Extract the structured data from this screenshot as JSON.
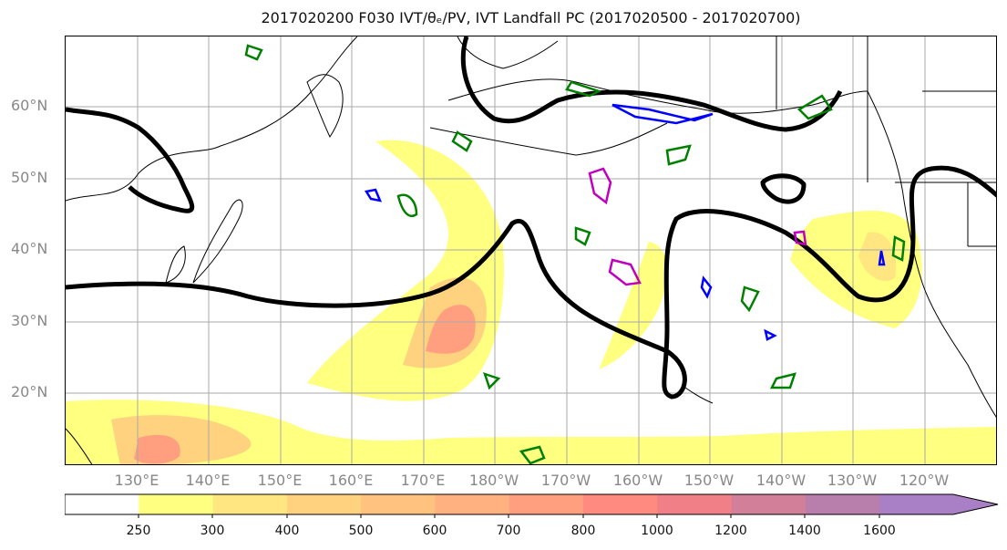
{
  "title_text": "2017020200 F030 IVT/θₑ/PV, IVT Landfall PC (2017020500 - 2017020700)",
  "lat_labels": [
    "60°N",
    "50°N",
    "40°N",
    "30°N",
    "20°N"
  ],
  "lon_labels": [
    "130°E",
    "140°E",
    "150°E",
    "160°E",
    "170°E",
    "180°W",
    "170°W",
    "160°W",
    "150°W",
    "140°W",
    "130°W",
    "120°W"
  ],
  "colorbar": {
    "ticks": [
      "250",
      "300",
      "400",
      "500",
      "600",
      "700",
      "800",
      "1000",
      "1200",
      "1400",
      "1600"
    ],
    "colors": [
      "#ffffff",
      "#ffff80",
      "#ffe680",
      "#ffd27f",
      "#ffc27f",
      "#ffb27f",
      "#ff9f7f",
      "#ff8a7f",
      "#f07f88",
      "#d27f99",
      "#b87fad",
      "#a97fc6"
    ]
  },
  "colors": {
    "pv_contour": "#000000",
    "green_contour": "#008000",
    "blue_contour": "#0000ff",
    "magenta_contour": "#bf00bf"
  }
}
